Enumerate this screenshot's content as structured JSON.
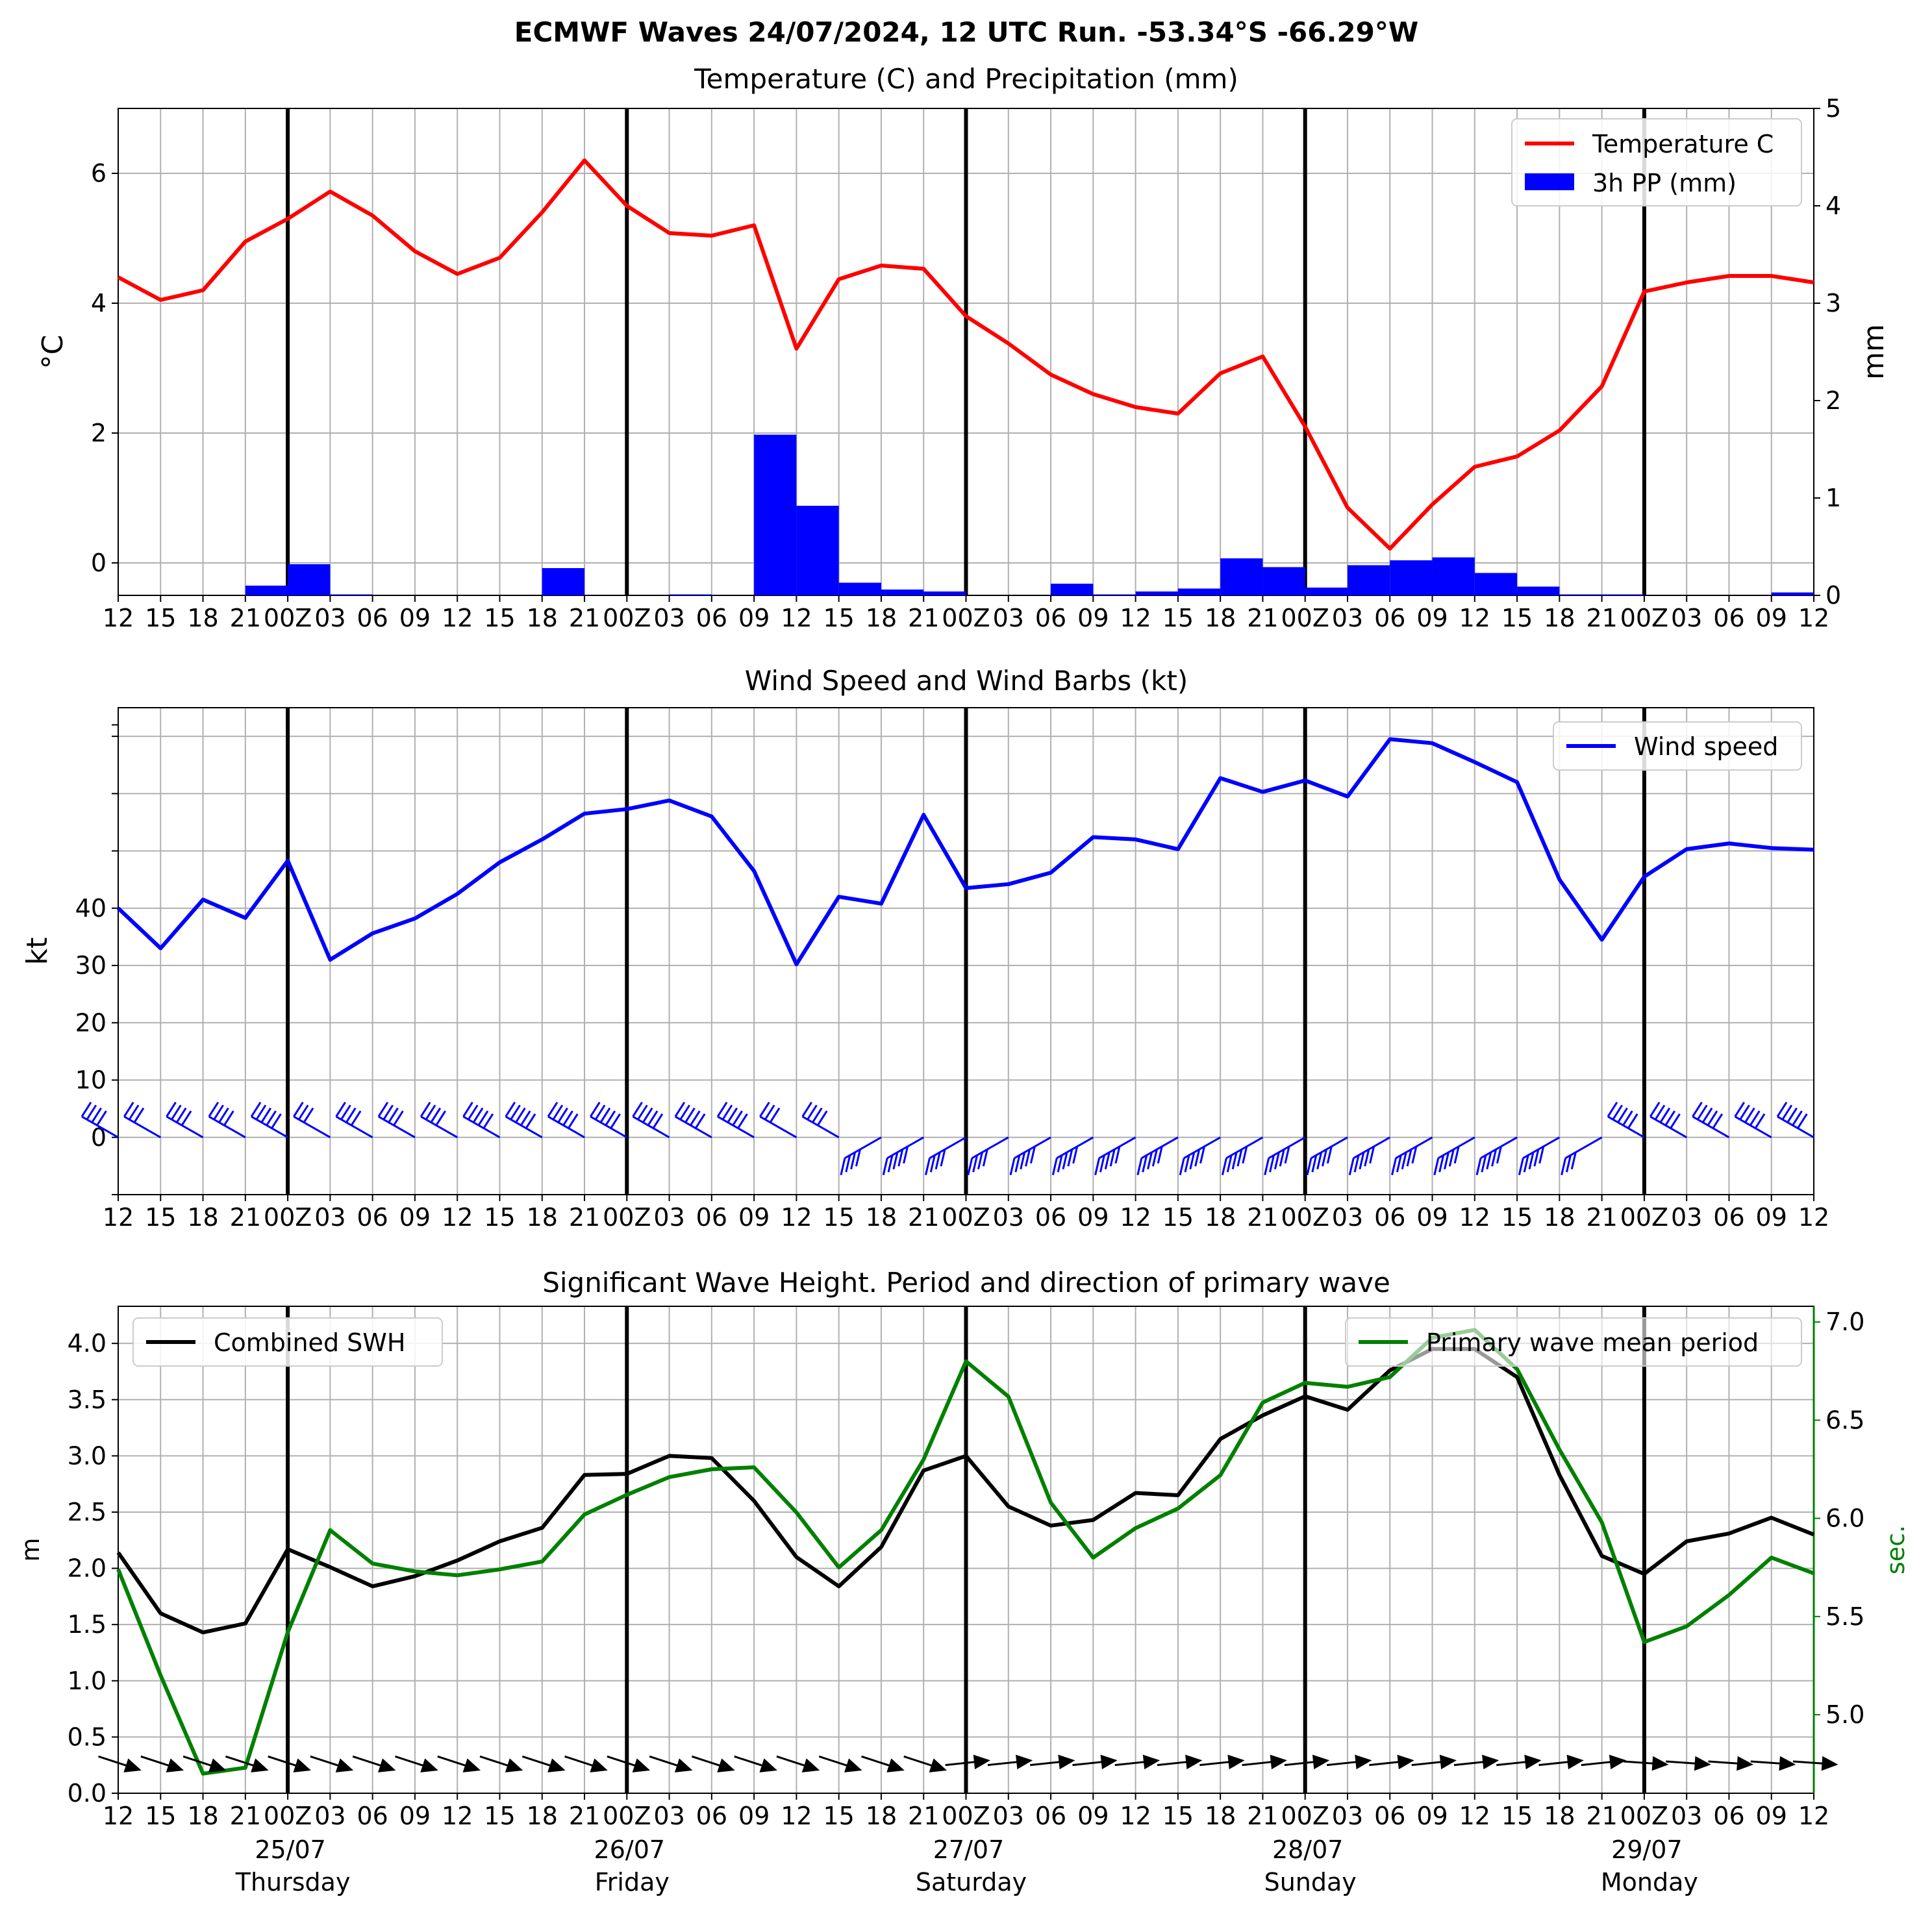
{
  "title": "ECMWF Waves 24/07/2024, 12 UTC Run. -53.34°S -66.29°W",
  "x_tick_labels": [
    "12",
    "15",
    "18",
    "21",
    "00Z",
    "03",
    "06",
    "09",
    "12",
    "15",
    "18",
    "21",
    "00Z",
    "03",
    "06",
    "09",
    "12",
    "15",
    "18",
    "21",
    "00Z",
    "03",
    "06",
    "09",
    "12",
    "15",
    "18",
    "21",
    "00Z",
    "03",
    "06",
    "09",
    "12",
    "15",
    "18",
    "21",
    "00Z",
    "03",
    "06",
    "09",
    "12"
  ],
  "days": [
    {
      "date": "25/07",
      "weekday": "Thursday"
    },
    {
      "date": "26/07",
      "weekday": "Friday"
    },
    {
      "date": "27/07",
      "weekday": "Saturday"
    },
    {
      "date": "28/07",
      "weekday": "Sunday"
    },
    {
      "date": "29/07",
      "weekday": "Monday"
    }
  ],
  "chart_data": [
    {
      "type": "line",
      "title": "Temperature (C) and Precipitation (mm)",
      "ylabel": "°C",
      "ylabel_right": "mm",
      "ylim": [
        -0.5,
        7
      ],
      "ylim_right": [
        0,
        5
      ],
      "yticks": [
        0,
        2,
        4,
        6
      ],
      "yticks_right": [
        0,
        1,
        2,
        3,
        4,
        5
      ],
      "legend": "top-right",
      "grid": true,
      "series": [
        {
          "name": "Temperature C",
          "color": "#ff0000",
          "values": [
            4.4,
            4.05,
            4.2,
            4.95,
            5.3,
            5.72,
            5.35,
            4.8,
            4.45,
            4.7,
            5.4,
            6.2,
            5.5,
            5.08,
            5.04,
            5.2,
            3.3,
            4.37,
            4.58,
            4.53,
            3.8,
            3.38,
            2.9,
            2.6,
            2.4,
            2.3,
            2.92,
            3.18,
            2.1,
            0.85,
            0.22,
            0.9,
            1.48,
            1.64,
            2.04,
            2.72,
            4.18,
            4.32,
            4.42,
            4.42,
            4.32
          ]
        },
        {
          "name": "3h PP (mm)",
          "color": "#0000ff",
          "axis": "right",
          "values": [
            0,
            0,
            0,
            0.1,
            0.32,
            0.01,
            0,
            0,
            0,
            0,
            0.28,
            0,
            0,
            0.01,
            0,
            1.65,
            0.92,
            0.13,
            0.06,
            0.04,
            0,
            0,
            0.12,
            0.01,
            0.04,
            0.07,
            0.38,
            0.29,
            0.08,
            0.31,
            0.36,
            0.39,
            0.23,
            0.09,
            0.01,
            0.01,
            0,
            0,
            0,
            0.03,
            0.02
          ]
        }
      ]
    },
    {
      "type": "line",
      "title": "Wind Speed and Wind Barbs (kt)",
      "ylabel": "kt",
      "ylim": [
        -10,
        75
      ],
      "yticks": [
        0,
        10,
        20,
        30,
        40
      ],
      "legend": "top-right",
      "grid": true,
      "series": [
        {
          "name": "Wind speed",
          "color": "#0000ff",
          "values": [
            40,
            33,
            41.5,
            38.3,
            48.3,
            31,
            35.6,
            38.2,
            42.5,
            48,
            52,
            56.5,
            57.3,
            58.8,
            56,
            46.5,
            30.2,
            42,
            40.8,
            56.3,
            43.5,
            44.2,
            46.2,
            52.4,
            52,
            50.3,
            62.7,
            60.3,
            62.3,
            59.5,
            69.5,
            68.8,
            65.5,
            62,
            45,
            34.5,
            45.5,
            50.3,
            51.3,
            50.5,
            50.2
          ]
        }
      ]
    },
    {
      "type": "line",
      "title": "Significant Wave Height. Period and direction of primary wave",
      "ylabel": "m",
      "ylabel_right": "sec.",
      "ylim": [
        0,
        4.33
      ],
      "ylim_right": [
        4.6,
        7.08
      ],
      "yticks": [
        0.0,
        0.5,
        1.0,
        1.5,
        2.0,
        2.5,
        3.0,
        3.5,
        4.0
      ],
      "yticks_right": [
        5.0,
        5.5,
        6.0,
        6.5,
        7.0
      ],
      "grid": true,
      "series": [
        {
          "name": "Combined SWH",
          "color": "#000000",
          "values": [
            2.14,
            1.6,
            1.43,
            1.51,
            2.17,
            2.01,
            1.84,
            1.93,
            2.07,
            2.24,
            2.36,
            2.83,
            2.84,
            3.0,
            2.98,
            2.6,
            2.1,
            1.84,
            2.19,
            2.87,
            3.0,
            2.55,
            2.38,
            2.43,
            2.67,
            2.65,
            3.15,
            3.36,
            3.53,
            3.41,
            3.76,
            3.95,
            3.95,
            3.7,
            2.83,
            2.11,
            1.95,
            2.24,
            2.31,
            2.45,
            2.3
          ]
        },
        {
          "name": "Primary wave mean period",
          "color": "#008000",
          "axis": "right",
          "values": [
            5.74,
            5.2,
            4.7,
            4.73,
            5.42,
            5.94,
            5.77,
            5.73,
            5.71,
            5.74,
            5.78,
            6.02,
            6.12,
            6.21,
            6.25,
            6.26,
            6.03,
            5.75,
            5.94,
            6.3,
            6.8,
            6.62,
            6.08,
            5.8,
            5.95,
            6.05,
            6.22,
            6.59,
            6.69,
            6.67,
            6.72,
            6.92,
            6.96,
            6.76,
            6.35,
            5.98,
            5.37,
            5.45,
            5.61,
            5.8,
            5.72
          ]
        }
      ]
    }
  ]
}
